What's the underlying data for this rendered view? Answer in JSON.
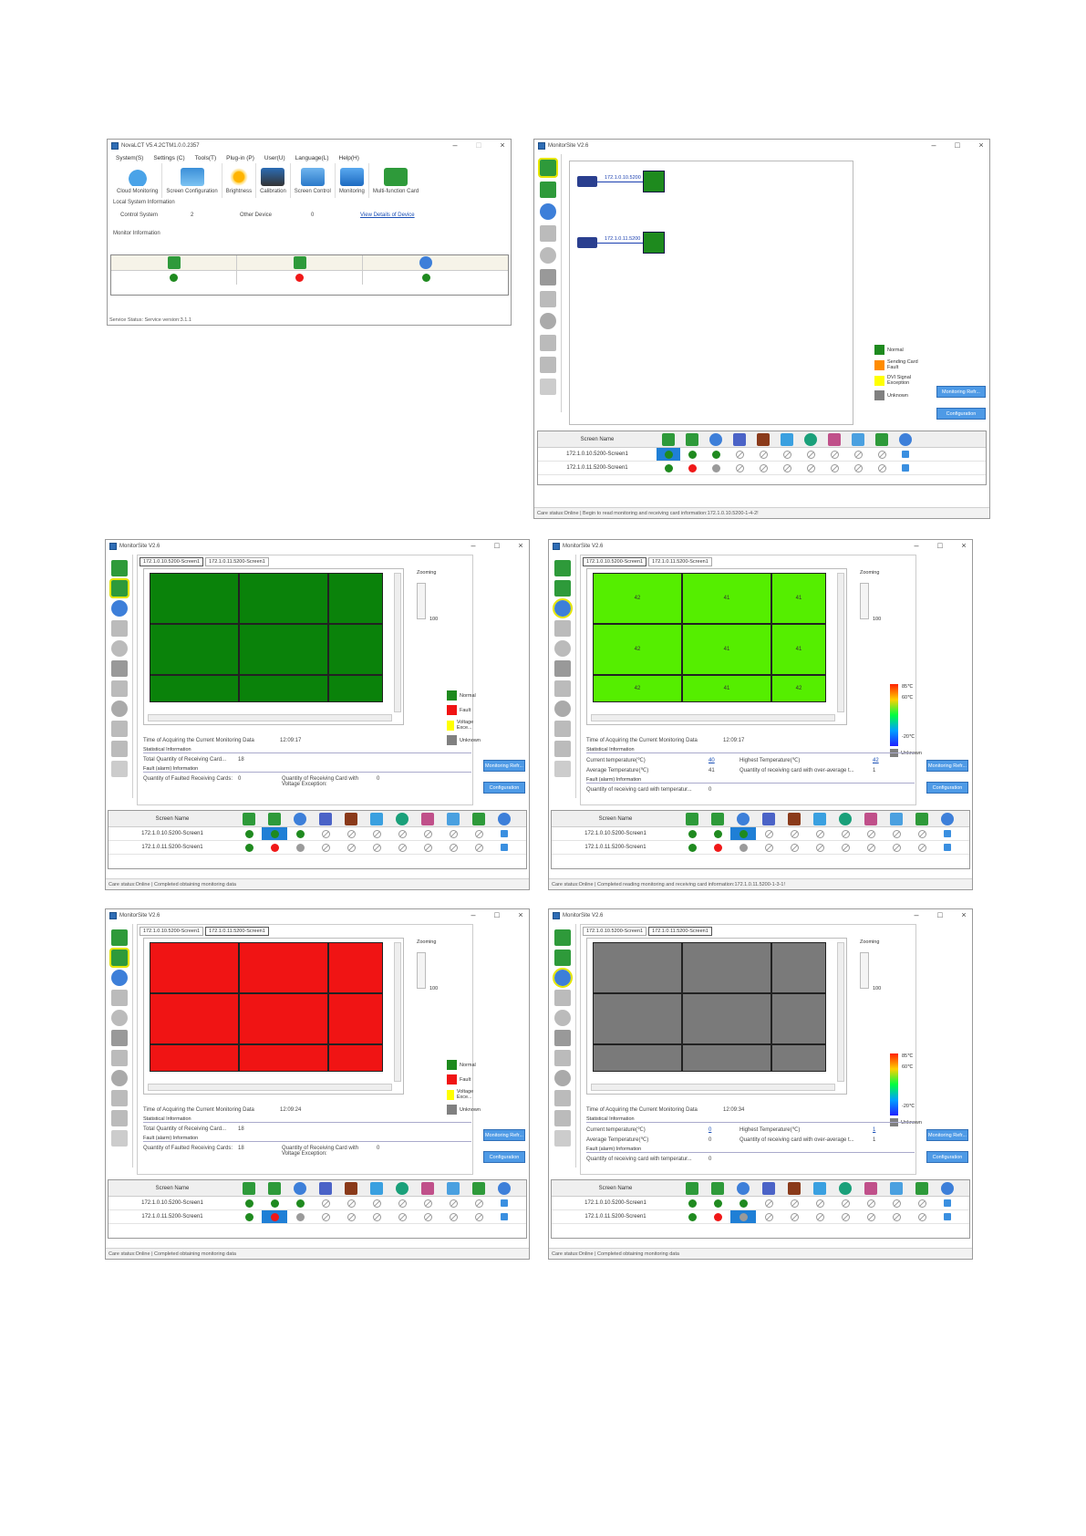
{
  "nova": {
    "title": "NovaLCT V5.4.2CTM1.0.0.2357",
    "menu": [
      "System(S)",
      "Settings (C)",
      "Tools(T)",
      "Plug-in (P)",
      "User(U)",
      "Language(L)",
      "Help(H)"
    ],
    "tools": [
      "Cloud Monitoring",
      "Screen Configuration",
      "Brightness",
      "Calibration",
      "Screen Control",
      "Monitoring",
      "Multi-function Card"
    ],
    "local_info": "Local System Information",
    "control_system_label": "Control System",
    "control_system_value": "2",
    "other_device_label": "Other Device",
    "other_device_value": "0",
    "view_details": "View Details of Device",
    "monitor_info": "Monitor Information",
    "status": "Service Status:   Service version:3.1.1"
  },
  "ms1": {
    "title": "MonitorSite V2.6",
    "devices": [
      "172.1.0.10.5200",
      "172.1.0.11.5200"
    ],
    "legend": [
      "Normal",
      "Sending Card Fault",
      "DVI Signal Exception",
      "Unknown"
    ],
    "btn_refresh": "Monitoring Refr...",
    "btn_config": "Configuration",
    "col_screen": "Screen Name",
    "rows": [
      "172.1.0.10.5200-Screen1",
      "172.1.0.11.5200-Screen1"
    ],
    "status": "Care status:Online  |  Begin to read monitoring and receiving card information:172.1.0.10.5200-1-4-2!"
  },
  "common": {
    "title": "MonitorSite V2.6",
    "tab1": "172.1.0.10.5200-Screen1",
    "tab2": "172.1.0.11.5200-Screen1",
    "zooming": "Zooming",
    "zoom_val": "100",
    "legend": [
      "Normal",
      "Fault",
      "Voltage Exce...",
      "Unknown"
    ],
    "time_label": "Time of Acquiring the Current Monitoring Data",
    "stat_info": "Statistical Information",
    "total_qty": "Total Quantity of Receiving Card...",
    "fault_info": "Fault (alarm) Information",
    "qty_faulted": "Quantity of Faulted Receiving Cards:",
    "qty_voltage": "Quantity of Receiving Card with Voltage Exception:",
    "btn_refresh": "Monitoring Refr...",
    "btn_config": "Configuration",
    "col_screen": "Screen Name",
    "rows": [
      "172.1.0.10.5200-Screen1",
      "172.1.0.11.5200-Screen1"
    ],
    "temp_max": "85℃",
    "temp_mid": "60℃",
    "temp_min": "-20℃",
    "temp_unknown": "Unknown",
    "current_temp": "Current temperature(℃)",
    "avg_temp": "Average Temperature(℃)",
    "highest_temp": "Highest Temperature(℃)",
    "qty_over_avg": "Quantity of receiving card with over-average t...",
    "qty_with_temp": "Quantity of receiving card with temperatur..."
  },
  "ms2": {
    "time": "12:09:17",
    "total": "18",
    "faulted": "0",
    "voltage": "0",
    "status": "Care status:Online  |  Completed obtaining monitoring data"
  },
  "ms3": {
    "time": "12:09:17",
    "cur": "40",
    "highest": "42",
    "avg": "41",
    "over_avg": "1",
    "with_temp": "0",
    "cells": [
      "42",
      "41",
      "41",
      "42",
      "41",
      "41",
      "42",
      "41",
      "42"
    ],
    "status": "Care status:Online  |  Completed reading monitoring and receiving card information:172.1.0.11.5200-1-3-1!"
  },
  "ms4": {
    "time": "12:09:24",
    "total": "18",
    "faulted": "18",
    "voltage": "0",
    "status": "Care status:Online  |  Completed obtaining monitoring data"
  },
  "ms5": {
    "time": "12:09:34",
    "cur": "0",
    "highest": "1",
    "avg": "0",
    "over_avg": "1",
    "with_temp": "0",
    "status": "Care status:Online  |  Completed obtaining monitoring data"
  }
}
